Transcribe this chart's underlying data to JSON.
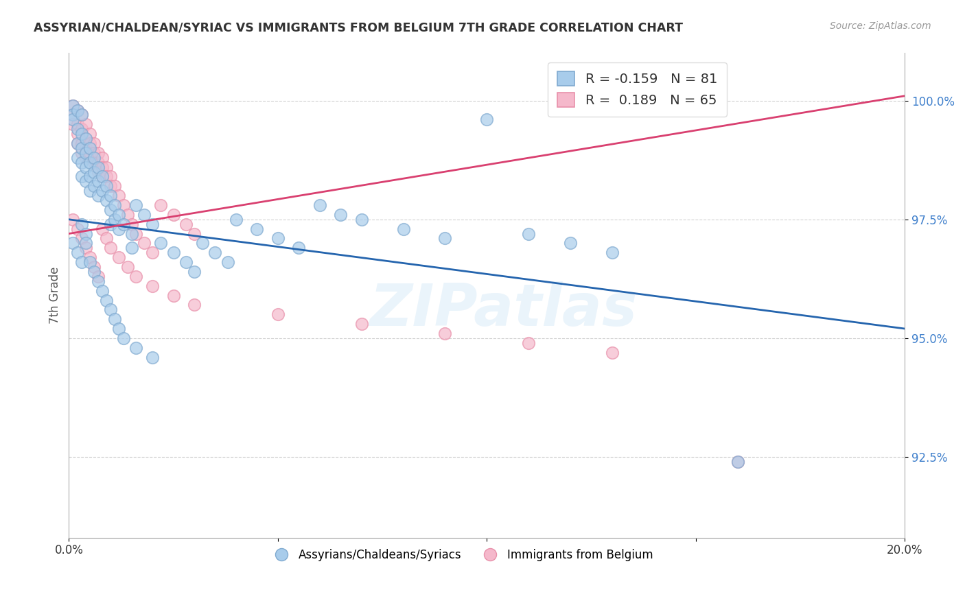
{
  "title": "ASSYRIAN/CHALDEAN/SYRIAC VS IMMIGRANTS FROM BELGIUM 7TH GRADE CORRELATION CHART",
  "source": "Source: ZipAtlas.com",
  "ylabel": "7th Grade",
  "ytick_labels": [
    "92.5%",
    "95.0%",
    "97.5%",
    "100.0%"
  ],
  "ytick_values": [
    0.925,
    0.95,
    0.975,
    1.0
  ],
  "xlim": [
    0.0,
    0.2
  ],
  "ylim": [
    0.908,
    1.01
  ],
  "legend_blue_r": "R = -0.159",
  "legend_blue_n": "N = 81",
  "legend_pink_r": "R =  0.189",
  "legend_pink_n": "N = 65",
  "blue_color": "#a8cceb",
  "pink_color": "#f5b8cb",
  "blue_edge_color": "#80aad0",
  "pink_edge_color": "#e890aa",
  "blue_line_color": "#2565ae",
  "pink_line_color": "#d94070",
  "watermark": "ZIPatlas",
  "blue_trend_x": [
    0.0,
    0.2
  ],
  "blue_trend_y": [
    0.975,
    0.952
  ],
  "pink_trend_x": [
    0.0,
    0.2
  ],
  "pink_trend_y": [
    0.972,
    1.001
  ],
  "blue_x": [
    0.001,
    0.001,
    0.001,
    0.002,
    0.002,
    0.002,
    0.002,
    0.003,
    0.003,
    0.003,
    0.003,
    0.003,
    0.004,
    0.004,
    0.004,
    0.004,
    0.005,
    0.005,
    0.005,
    0.005,
    0.006,
    0.006,
    0.006,
    0.007,
    0.007,
    0.007,
    0.008,
    0.008,
    0.009,
    0.009,
    0.01,
    0.01,
    0.01,
    0.011,
    0.011,
    0.012,
    0.012,
    0.013,
    0.015,
    0.015,
    0.016,
    0.018,
    0.02,
    0.022,
    0.025,
    0.028,
    0.03,
    0.032,
    0.035,
    0.038,
    0.04,
    0.045,
    0.05,
    0.055,
    0.06,
    0.065,
    0.07,
    0.08,
    0.09,
    0.1,
    0.11,
    0.12,
    0.13,
    0.001,
    0.002,
    0.003,
    0.003,
    0.004,
    0.004,
    0.005,
    0.006,
    0.007,
    0.008,
    0.009,
    0.01,
    0.011,
    0.012,
    0.013,
    0.016,
    0.02,
    0.16
  ],
  "blue_y": [
    0.999,
    0.997,
    0.996,
    0.998,
    0.994,
    0.991,
    0.988,
    0.997,
    0.993,
    0.99,
    0.987,
    0.984,
    0.992,
    0.989,
    0.986,
    0.983,
    0.99,
    0.987,
    0.984,
    0.981,
    0.988,
    0.985,
    0.982,
    0.986,
    0.983,
    0.98,
    0.984,
    0.981,
    0.982,
    0.979,
    0.98,
    0.977,
    0.974,
    0.978,
    0.975,
    0.976,
    0.973,
    0.974,
    0.972,
    0.969,
    0.978,
    0.976,
    0.974,
    0.97,
    0.968,
    0.966,
    0.964,
    0.97,
    0.968,
    0.966,
    0.975,
    0.973,
    0.971,
    0.969,
    0.978,
    0.976,
    0.975,
    0.973,
    0.971,
    0.996,
    0.972,
    0.97,
    0.968,
    0.97,
    0.968,
    0.966,
    0.974,
    0.972,
    0.97,
    0.966,
    0.964,
    0.962,
    0.96,
    0.958,
    0.956,
    0.954,
    0.952,
    0.95,
    0.948,
    0.946,
    0.924
  ],
  "pink_x": [
    0.001,
    0.001,
    0.001,
    0.002,
    0.002,
    0.002,
    0.002,
    0.003,
    0.003,
    0.003,
    0.003,
    0.004,
    0.004,
    0.004,
    0.004,
    0.005,
    0.005,
    0.005,
    0.006,
    0.006,
    0.006,
    0.007,
    0.007,
    0.007,
    0.008,
    0.008,
    0.008,
    0.009,
    0.009,
    0.01,
    0.01,
    0.011,
    0.012,
    0.013,
    0.014,
    0.015,
    0.016,
    0.018,
    0.02,
    0.022,
    0.025,
    0.028,
    0.03,
    0.001,
    0.002,
    0.003,
    0.004,
    0.005,
    0.006,
    0.007,
    0.008,
    0.009,
    0.01,
    0.012,
    0.014,
    0.016,
    0.02,
    0.025,
    0.03,
    0.05,
    0.07,
    0.09,
    0.11,
    0.13,
    0.16
  ],
  "pink_y": [
    0.999,
    0.997,
    0.995,
    0.998,
    0.995,
    0.993,
    0.991,
    0.997,
    0.994,
    0.991,
    0.989,
    0.995,
    0.992,
    0.99,
    0.988,
    0.993,
    0.991,
    0.989,
    0.991,
    0.989,
    0.987,
    0.989,
    0.987,
    0.985,
    0.988,
    0.986,
    0.984,
    0.986,
    0.984,
    0.984,
    0.982,
    0.982,
    0.98,
    0.978,
    0.976,
    0.974,
    0.972,
    0.97,
    0.968,
    0.978,
    0.976,
    0.974,
    0.972,
    0.975,
    0.973,
    0.971,
    0.969,
    0.967,
    0.965,
    0.963,
    0.973,
    0.971,
    0.969,
    0.967,
    0.965,
    0.963,
    0.961,
    0.959,
    0.957,
    0.955,
    0.953,
    0.951,
    0.949,
    0.947,
    0.924
  ]
}
